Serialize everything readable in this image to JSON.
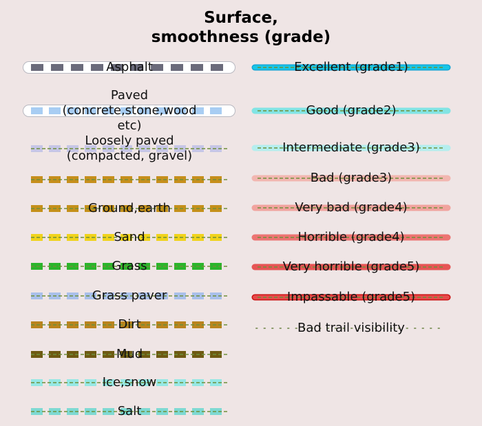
{
  "title": [
    "Surface,",
    "smoothness (grade)"
  ],
  "colors": {
    "background": "#efe5e5",
    "trail_dash": "#6e8f3a"
  },
  "surface": [
    {
      "label": [
        "Asphalt"
      ],
      "style": "asphalt",
      "fill": "#6b6b7b",
      "casing": "#ffffff"
    },
    {
      "label": [
        "Paved",
        "(concrete,stone,wood",
        "etc)"
      ],
      "style": "paved",
      "fill": "#a8cdf3",
      "casing": "#ffffff"
    },
    {
      "label": [
        "Loosely paved",
        "(compacted, gravel)"
      ],
      "style": "dashed",
      "fill": "#c6c6e6"
    },
    {
      "label": [
        ""
      ],
      "style": "dashed",
      "fill": "#c68f1c"
    },
    {
      "label": [
        "Ground,earth"
      ],
      "style": "dashed",
      "fill": "#c4901a"
    },
    {
      "label": [
        "Sand"
      ],
      "style": "dashed",
      "fill": "#f0d31c"
    },
    {
      "label": [
        "Grass"
      ],
      "style": "dashed",
      "fill": "#2bb52b"
    },
    {
      "label": [
        "Grass paver"
      ],
      "style": "dashed",
      "fill": "#a9c0ea"
    },
    {
      "label": [
        "Dirt"
      ],
      "style": "dashed",
      "fill": "#b9841e"
    },
    {
      "label": [
        "Mud"
      ],
      "style": "dashed",
      "fill": "#6e5a12"
    },
    {
      "label": [
        "Ice,snow"
      ],
      "style": "dashed",
      "fill": "#96e8e4"
    },
    {
      "label": [
        "Salt"
      ],
      "style": "dashed",
      "fill": "#7ed9d2"
    }
  ],
  "smoothness": [
    {
      "label": "Excellent (grade1)",
      "style": "solid",
      "fill": "#19c6e6",
      "casing": "#10a8d8"
    },
    {
      "label": "Good (grade2)",
      "style": "solid",
      "fill": "#82e4e4"
    },
    {
      "label": "Intermediate (grade3)",
      "style": "solid",
      "fill": "#b4eeee"
    },
    {
      "label": "Bad (grade3)",
      "style": "solid",
      "fill": "#f2b6b0"
    },
    {
      "label": "Very bad (grade4)",
      "style": "solid",
      "fill": "#f1a39e"
    },
    {
      "label": "Horrible (grade4)",
      "style": "solid",
      "fill": "#ec7472"
    },
    {
      "label": "Very horrible (grade5)",
      "style": "solid",
      "fill": "#e65555"
    },
    {
      "label": "Impassable (grade5)",
      "style": "solid",
      "fill": "#e64b4b",
      "casing": "#cc1111"
    },
    {
      "label": "Bad trail visibility",
      "style": "dotted",
      "fill": "#8a9a6a"
    }
  ]
}
